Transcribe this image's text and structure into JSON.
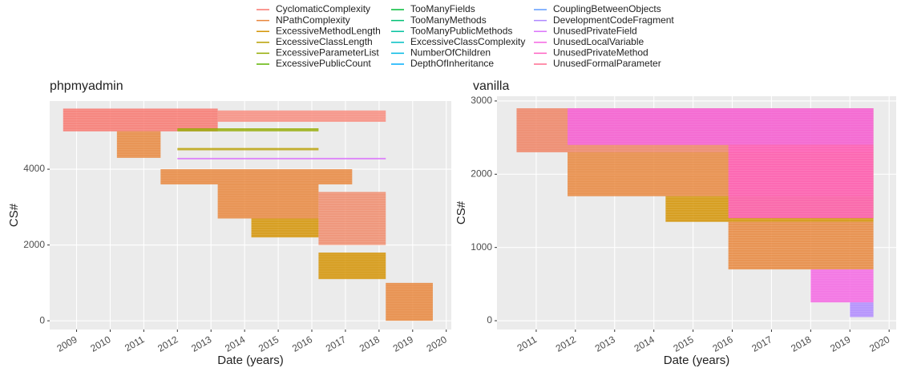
{
  "legend": {
    "items": [
      {
        "name": "CyclomaticComplexity",
        "color": "#F8766D"
      },
      {
        "name": "NPathComplexity",
        "color": "#E8853A"
      },
      {
        "name": "ExcessiveMethodLength",
        "color": "#D39200"
      },
      {
        "name": "ExcessiveClassLength",
        "color": "#B79F00"
      },
      {
        "name": "ExcessiveParameterList",
        "color": "#93AA00"
      },
      {
        "name": "ExcessivePublicCount",
        "color": "#5EB300"
      },
      {
        "name": "TooManyFields",
        "color": "#00BA38"
      },
      {
        "name": "TooManyMethods",
        "color": "#00BF74"
      },
      {
        "name": "TooManyPublicMethods",
        "color": "#00C19F"
      },
      {
        "name": "ExcessiveClassComplexity",
        "color": "#00BFC4"
      },
      {
        "name": "NumberOfChildren",
        "color": "#00B9E3"
      },
      {
        "name": "DepthOfInheritance",
        "color": "#00ADFA"
      },
      {
        "name": "CouplingBetweenObjects",
        "color": "#619CFF"
      },
      {
        "name": "DevelopmentCodeFragment",
        "color": "#AE87FF"
      },
      {
        "name": "UnusedPrivateField",
        "color": "#DB72FB"
      },
      {
        "name": "UnusedLocalVariable",
        "color": "#F564E3"
      },
      {
        "name": "UnusedPrivateMethod",
        "color": "#FF61C3"
      },
      {
        "name": "UnusedFormalParameter",
        "color": "#FF6C91"
      }
    ]
  },
  "chart_data": [
    {
      "type": "segment",
      "title": "phpmyadmin",
      "x_label": "Date (years)",
      "y_label": "CS#",
      "xlim": [
        2008.2,
        2020.15
      ],
      "ylim": [
        -230,
        5800
      ],
      "xticks": [
        2009,
        2010,
        2011,
        2012,
        2013,
        2014,
        2015,
        2016,
        2017,
        2018,
        2019,
        2020
      ],
      "yticks": [
        0,
        2000,
        4000
      ],
      "grid": true,
      "blocks": [
        {
          "x": [
            2008.6,
            2013.2
          ],
          "y": [
            5000,
            5600
          ],
          "color": "#F8766D"
        },
        {
          "x": [
            2013.2,
            2018.2
          ],
          "y": [
            5250,
            5550
          ],
          "color": "#F88B7D"
        },
        {
          "x": [
            2012.0,
            2016.2
          ],
          "y": [
            5000,
            5080
          ],
          "color": "#93AA00"
        },
        {
          "x": [
            2010.2,
            2011.5
          ],
          "y": [
            4300,
            5000
          ],
          "color": "#E8853A"
        },
        {
          "x": [
            2011.5,
            2017.2
          ],
          "y": [
            3600,
            4000
          ],
          "color": "#E8853A"
        },
        {
          "x": [
            2012.0,
            2016.2
          ],
          "y": [
            4500,
            4560
          ],
          "color": "#B79F00"
        },
        {
          "x": [
            2012.0,
            2018.2
          ],
          "y": [
            4260,
            4300
          ],
          "color": "#DB72FB"
        },
        {
          "x": [
            2013.2,
            2016.2
          ],
          "y": [
            2700,
            3600
          ],
          "color": "#E8853A"
        },
        {
          "x": [
            2014.2,
            2016.2
          ],
          "y": [
            2200,
            2700
          ],
          "color": "#D39200"
        },
        {
          "x": [
            2016.2,
            2018.2
          ],
          "y": [
            2000,
            3400
          ],
          "color": "#F08A6A"
        },
        {
          "x": [
            2016.2,
            2018.2
          ],
          "y": [
            1100,
            1800
          ],
          "color": "#D39200"
        },
        {
          "x": [
            2018.2,
            2019.6
          ],
          "y": [
            0,
            1000
          ],
          "color": "#E8853A"
        }
      ]
    },
    {
      "type": "segment",
      "title": "vanilla",
      "x_label": "Date (years)",
      "y_label": "CS#",
      "xlim": [
        2010.0,
        2020.18
      ],
      "ylim": [
        -120,
        3065
      ],
      "xticks": [
        2011,
        2012,
        2013,
        2014,
        2015,
        2016,
        2017,
        2018,
        2019,
        2020
      ],
      "yticks": [
        0,
        1000,
        2000,
        3000
      ],
      "grid": true,
      "blocks": [
        {
          "x": [
            2010.5,
            2019.6
          ],
          "y": [
            2300,
            2900
          ],
          "color": "#EE8060"
        },
        {
          "x": [
            2011.8,
            2019.6
          ],
          "y": [
            1700,
            2300
          ],
          "color": "#E8853A"
        },
        {
          "x": [
            2014.3,
            2019.6
          ],
          "y": [
            1350,
            1700
          ],
          "color": "#D39200"
        },
        {
          "x": [
            2015.9,
            2019.6
          ],
          "y": [
            700,
            1350
          ],
          "color": "#E8853A"
        },
        {
          "x": [
            2018.0,
            2019.6
          ],
          "y": [
            250,
            700
          ],
          "color": "#F564E3"
        },
        {
          "x": [
            2019.0,
            2019.6
          ],
          "y": [
            50,
            250
          ],
          "color": "#AE87FF"
        },
        {
          "x": [
            2011.8,
            2019.6
          ],
          "y": [
            2400,
            2900
          ],
          "color": "#F564E3"
        },
        {
          "x": [
            2015.9,
            2019.6
          ],
          "y": [
            1400,
            2400
          ],
          "color": "#FF61C3"
        }
      ]
    }
  ]
}
